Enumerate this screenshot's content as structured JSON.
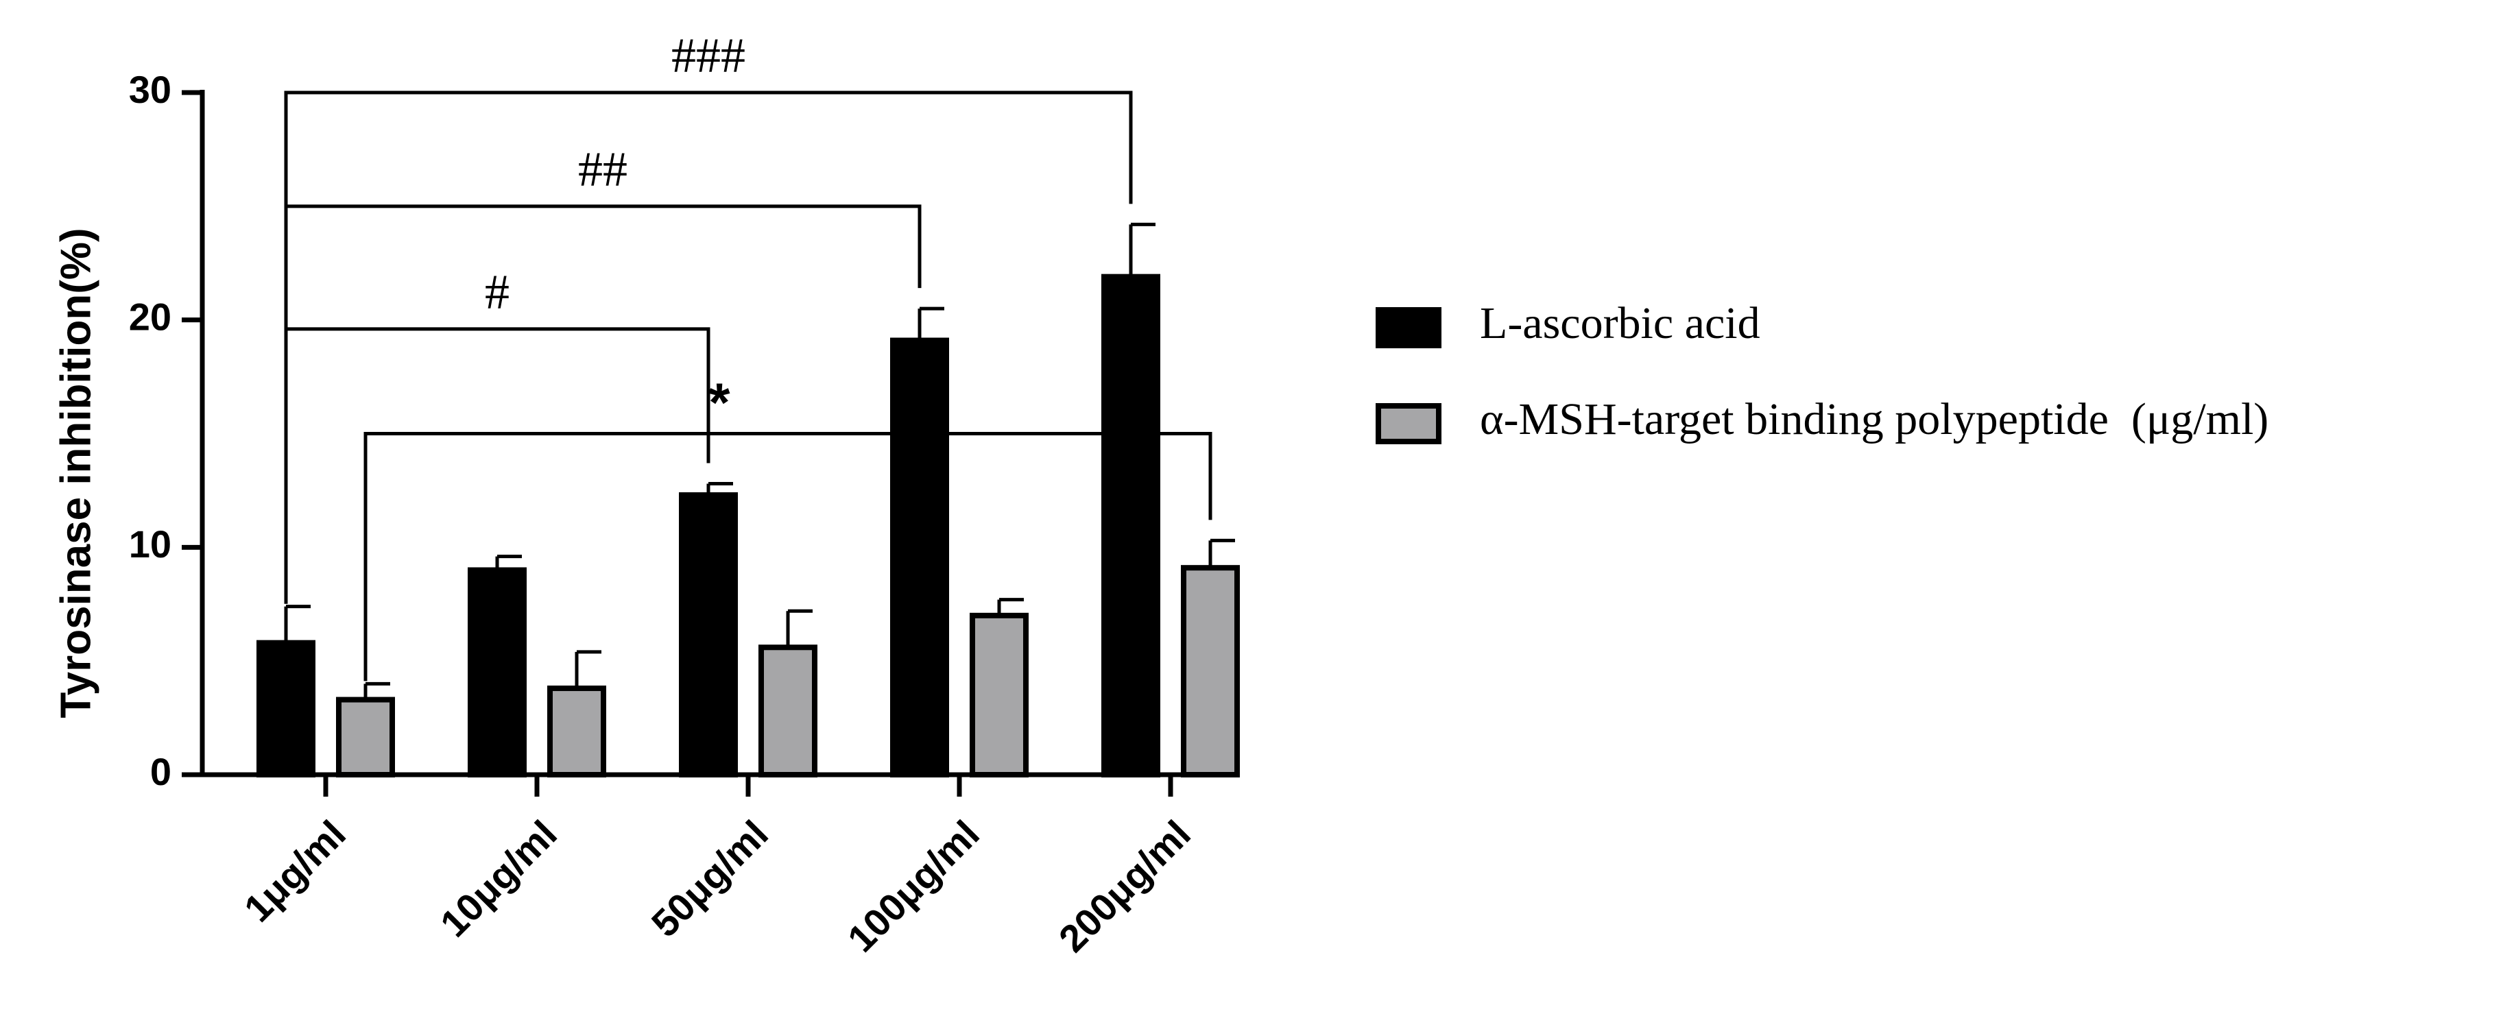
{
  "chart_data": {
    "type": "bar",
    "title": "",
    "xlabel": "",
    "ylabel": "Tyrosinase inhibition(%)",
    "ylim": [
      0,
      30
    ],
    "yticks": [
      "0",
      "10",
      "20",
      "30"
    ],
    "categories": [
      "1μg/ml",
      "10μg/ml",
      "50μg/ml",
      "100μg/ml",
      "200μg/ml"
    ],
    "series": [
      {
        "name": "L-ascorbic acid",
        "color": "#000000",
        "values": [
          5.8,
          9.0,
          12.3,
          19.1,
          21.9
        ],
        "errors": [
          1.6,
          0.6,
          0.5,
          1.4,
          2.3
        ]
      },
      {
        "name": "α-MSH-target binding polypeptide  (μg/ml)",
        "color": "#a6a6a8",
        "values": [
          3.3,
          3.8,
          5.6,
          7.0,
          9.1
        ],
        "errors": [
          0.7,
          1.6,
          1.6,
          0.7,
          1.2
        ]
      }
    ],
    "legend_position": "right",
    "annotations": [
      {
        "label": "###",
        "from_series": 0,
        "from_cat": 0,
        "to_series": 0,
        "to_cat": 4,
        "y": 30
      },
      {
        "label": "##",
        "from_series": 0,
        "from_cat": 0,
        "to_series": 0,
        "to_cat": 3,
        "y": 25
      },
      {
        "label": "#",
        "from_series": 0,
        "from_cat": 0,
        "to_series": 0,
        "to_cat": 2,
        "y": 19.6
      },
      {
        "label": "*",
        "from_series": 1,
        "from_cat": 0,
        "to_series": 1,
        "to_cat": 4,
        "y": 15
      }
    ]
  }
}
